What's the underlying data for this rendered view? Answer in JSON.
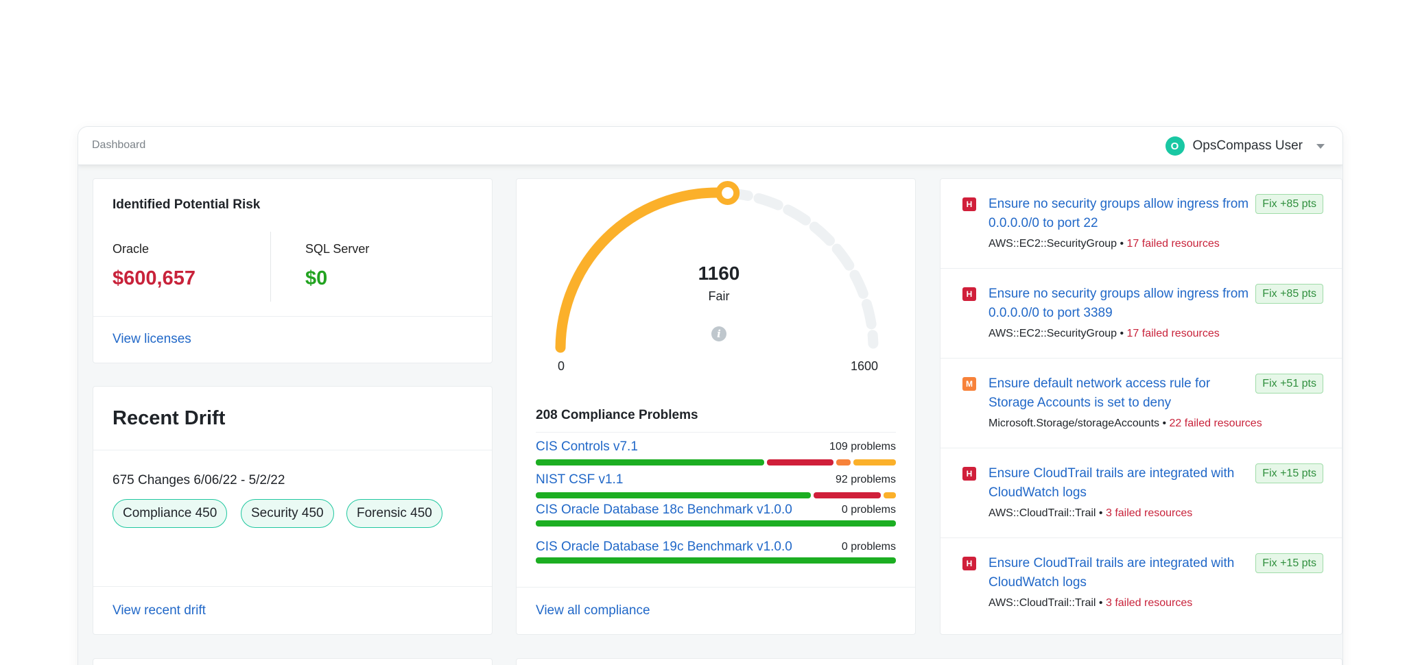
{
  "header": {
    "breadcrumb": "Dashboard",
    "avatar_letter": "O",
    "user_name": "OpsCompass User"
  },
  "risk": {
    "title": "Identified Potential Risk",
    "items": [
      {
        "label": "Oracle",
        "value": "$600,657",
        "color": "#c8223a"
      },
      {
        "label": "SQL Server",
        "value": "$0",
        "color": "#23a321"
      }
    ],
    "link": "View licenses"
  },
  "drift": {
    "title": "Recent Drift",
    "summary": "675 Changes 6/06/22 - 5/2/22",
    "chips": [
      "Compliance 450",
      "Security 450",
      "Forensic 450"
    ],
    "link": "View recent drift"
  },
  "compliance": {
    "score": "1160",
    "rating": "Fair",
    "min_label": "0",
    "max_label": "1600",
    "score_value": 1160,
    "score_max": 1600,
    "gauge_color": "#fbb02a",
    "track_color": "#eef1f3",
    "problems_title": "208 Compliance Problems",
    "frameworks": [
      {
        "name": "CIS Controls v7.1",
        "count": "109 problems",
        "segments": [
          0.65,
          0.19,
          0.04,
          0.12
        ]
      },
      {
        "name": "NIST CSF v1.1",
        "count": "92 problems",
        "segments": [
          0.775,
          0.19,
          0.0,
          0.035
        ]
      },
      {
        "name": "CIS Oracle Database 18c Benchmark v1.0.0",
        "count": "0 problems",
        "segments": [
          1,
          0,
          0,
          0
        ]
      },
      {
        "name": "CIS Oracle Database 19c Benchmark v1.0.0",
        "count": "0 problems",
        "segments": [
          1,
          0,
          0,
          0
        ]
      }
    ],
    "segment_colors": [
      "#1cae22",
      "#d01f3a",
      "#f7823a",
      "#fbb02a"
    ],
    "link": "View all compliance"
  },
  "recommendations": [
    {
      "severity": "H",
      "color": "#d01f3a",
      "title": "Ensure no security groups allow ingress from 0.0.0.0/0 to port 22",
      "resource_type": "AWS::EC2::SecurityGroup",
      "failed": "17 failed resources",
      "fix": "Fix +85 pts"
    },
    {
      "severity": "H",
      "color": "#d01f3a",
      "title": "Ensure no security groups allow ingress from 0.0.0.0/0 to port 3389",
      "resource_type": "AWS::EC2::SecurityGroup",
      "failed": "17 failed resources",
      "fix": "Fix +85 pts"
    },
    {
      "severity": "M",
      "color": "#f7823a",
      "title": "Ensure default network access rule for Storage Accounts is set to deny",
      "resource_type": "Microsoft.Storage/storageAccounts",
      "failed": "22 failed resources",
      "fix": "Fix +51 pts"
    },
    {
      "severity": "H",
      "color": "#d01f3a",
      "title": "Ensure CloudTrail trails are integrated with CloudWatch logs",
      "resource_type": "AWS::CloudTrail::Trail",
      "failed": "3 failed resources",
      "fix": "Fix +15 pts"
    },
    {
      "severity": "H",
      "color": "#d01f3a",
      "title": "Ensure CloudTrail trails are integrated with CloudWatch logs",
      "resource_type": "AWS::CloudTrail::Trail",
      "failed": "3 failed resources",
      "fix": "Fix +15 pts"
    }
  ]
}
